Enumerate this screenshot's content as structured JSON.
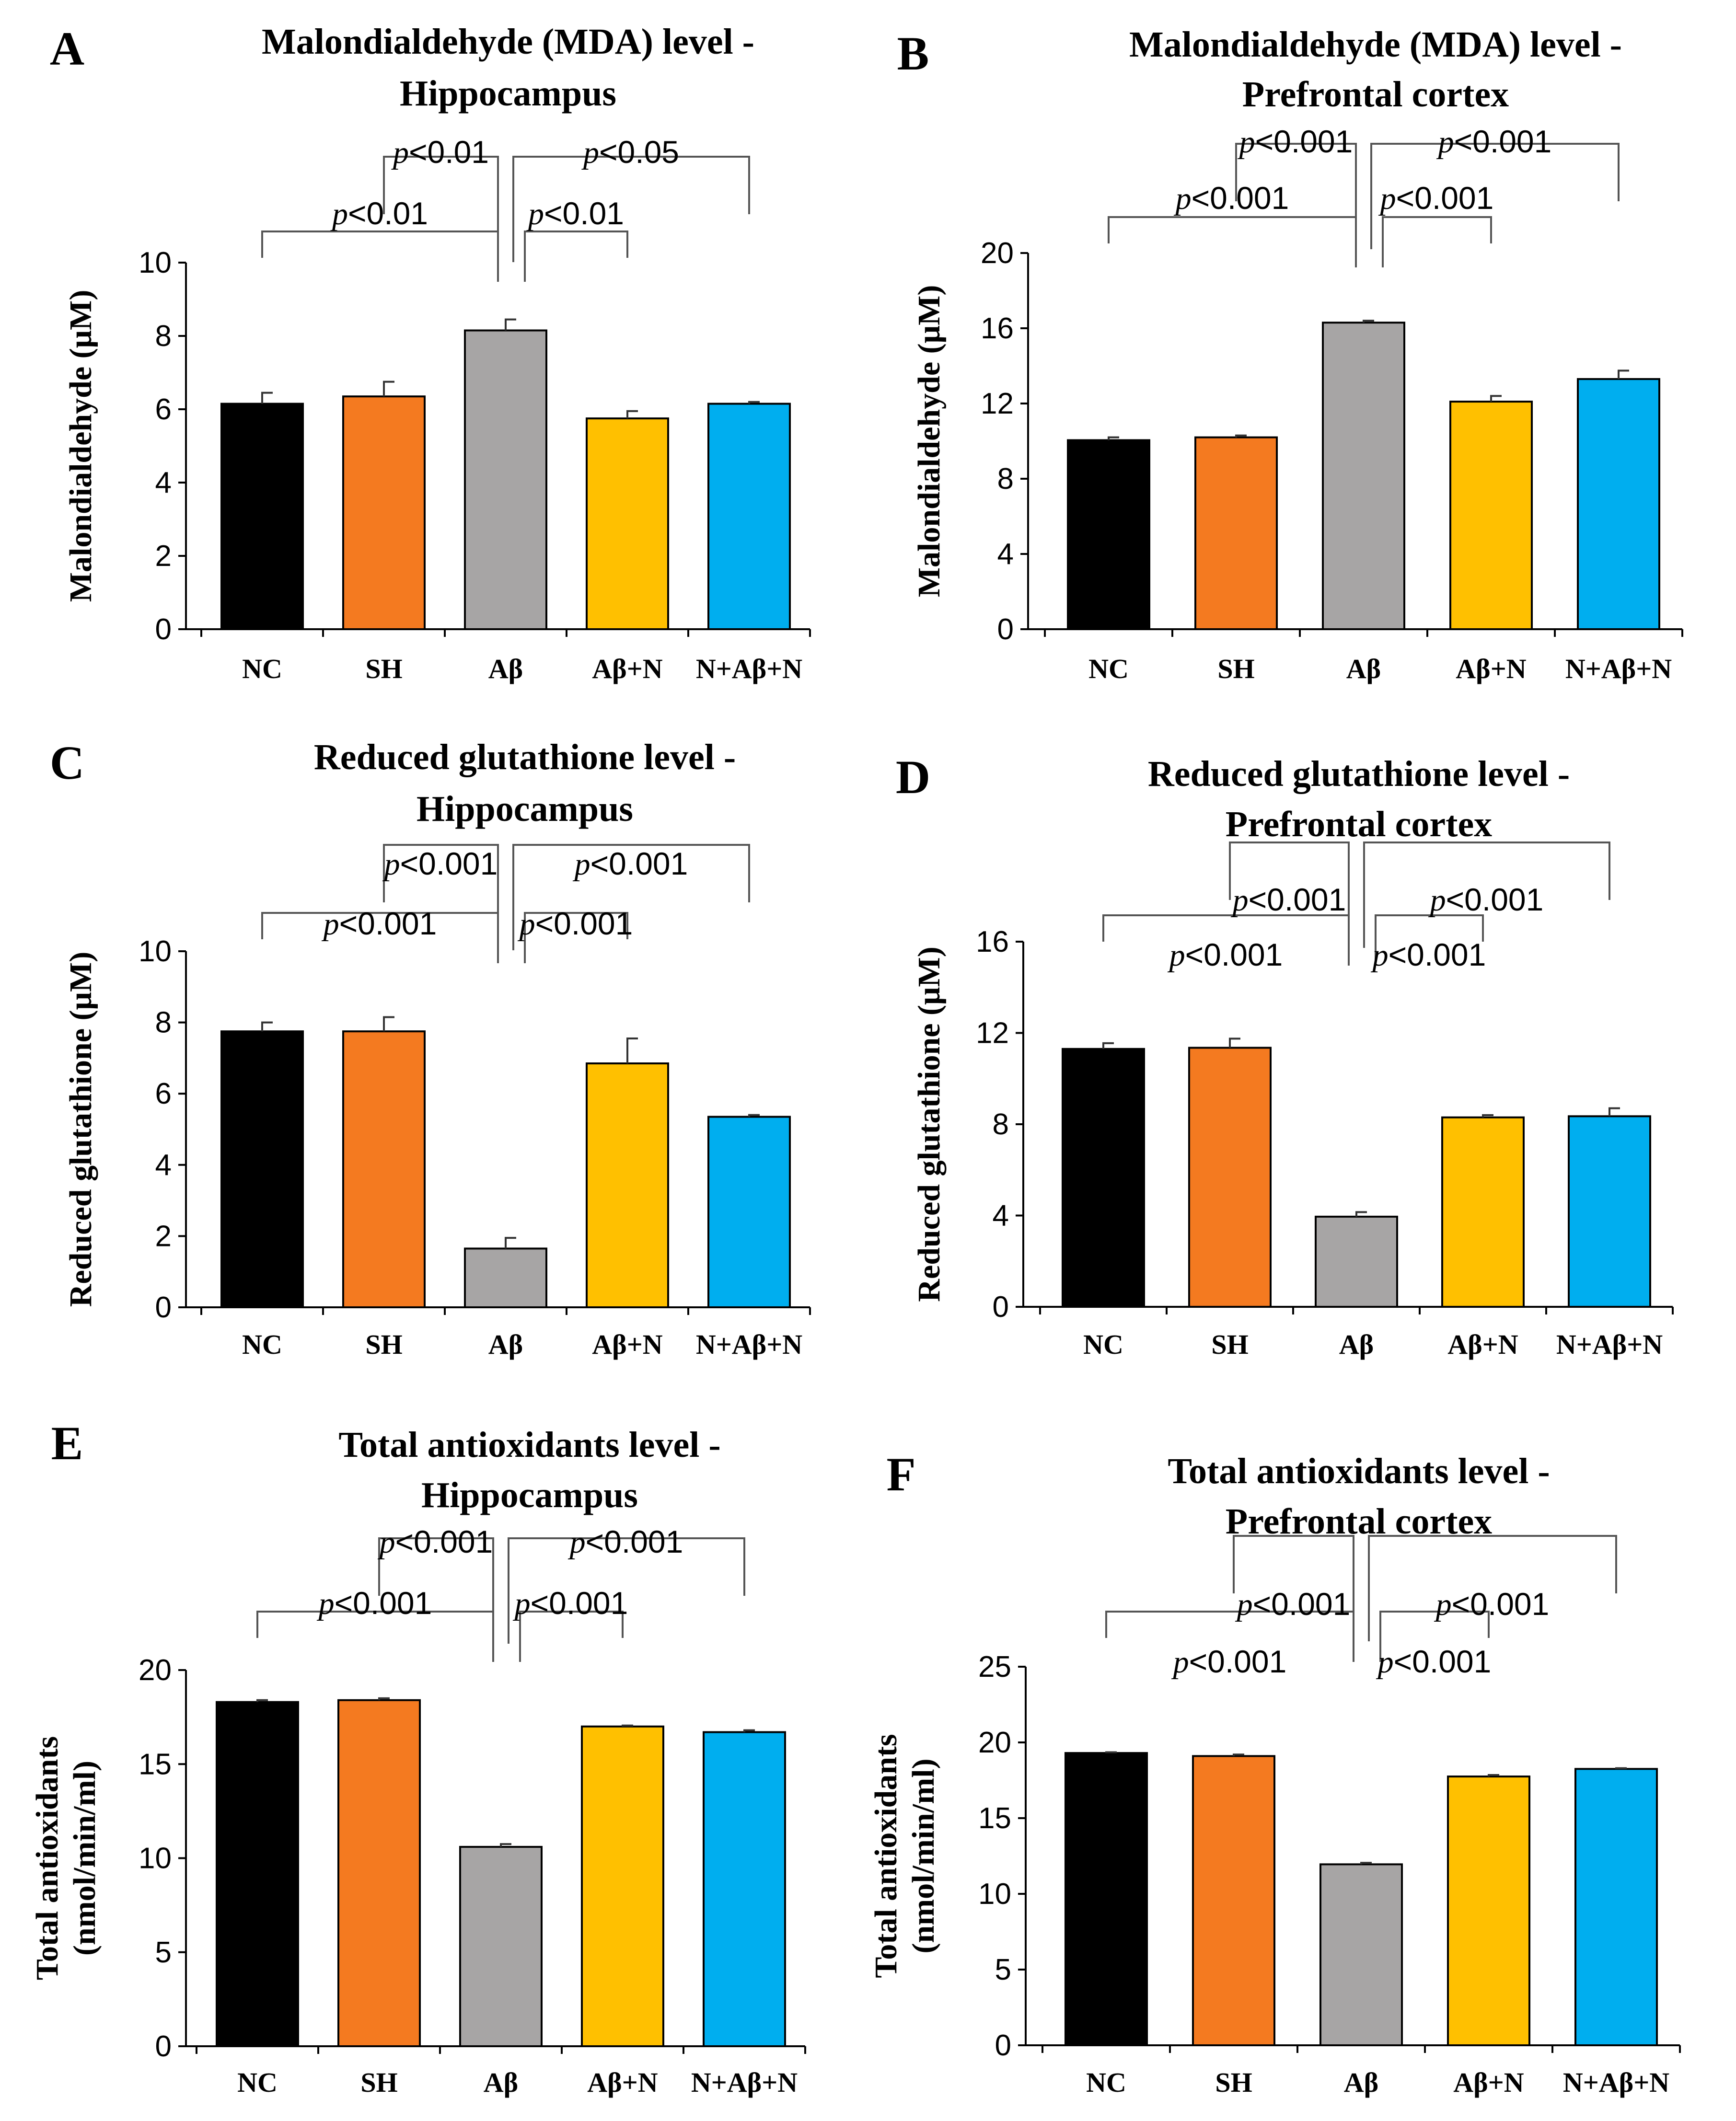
{
  "figure": {
    "categories": [
      "NC",
      "SH",
      "Aβ",
      "Aβ+N",
      "N+Aβ+N"
    ],
    "colors": [
      "#000000",
      "#F47A20",
      "#A7A5A5",
      "#FFC000",
      "#00AEEF"
    ]
  },
  "chart_data": [
    {
      "panel": "A",
      "type": "bar",
      "title": [
        "Malondialdehyde (MDA) level -",
        "Hippocampus"
      ],
      "ylabel": [
        "Malondialdehyde (μM)"
      ],
      "xlabel": "",
      "categories": [
        "NC",
        "SH",
        "Aβ",
        "Aβ+N",
        "N+Aβ+N"
      ],
      "values": [
        6.15,
        6.35,
        8.15,
        5.75,
        6.15
      ],
      "errors": [
        0.3,
        0.4,
        0.3,
        0.2,
        0.05
      ],
      "ylim": [
        0,
        10
      ],
      "yticks": [
        0,
        2,
        4,
        6,
        8,
        10
      ],
      "significance": [
        {
          "from": "NC",
          "to": "Aβ",
          "label": "p<0.01",
          "level": 0
        },
        {
          "from": "Aβ",
          "to": "Aβ+N",
          "label": "p<0.01",
          "level": 0
        },
        {
          "from": "SH",
          "to": "Aβ",
          "label": "p<0.01",
          "level": 1
        },
        {
          "from": "Aβ",
          "to": "N+Aβ+N",
          "label": "p<0.05",
          "level": 1
        }
      ]
    },
    {
      "panel": "B",
      "type": "bar",
      "title": [
        "Malondialdehyde (MDA) level -",
        "Prefrontal cortex"
      ],
      "ylabel": [
        "Malondialdehyde (μM)"
      ],
      "xlabel": "",
      "categories": [
        "NC",
        "SH",
        "Aβ",
        "Aβ+N",
        "N+Aβ+N"
      ],
      "values": [
        10.05,
        10.2,
        16.3,
        12.1,
        13.3
      ],
      "errors": [
        0.15,
        0.1,
        0.1,
        0.3,
        0.45
      ],
      "ylim": [
        0,
        20
      ],
      "yticks": [
        0,
        4,
        8,
        12,
        16,
        20
      ],
      "significance": [
        {
          "from": "NC",
          "to": "Aβ",
          "label": "p<0.001",
          "level": 0
        },
        {
          "from": "Aβ",
          "to": "Aβ+N",
          "label": "p<0.001",
          "level": 0
        },
        {
          "from": "SH",
          "to": "Aβ",
          "label": "p<0.001",
          "level": 1
        },
        {
          "from": "Aβ",
          "to": "N+Aβ+N",
          "label": "p<0.001",
          "level": 1
        }
      ]
    },
    {
      "panel": "C",
      "type": "bar",
      "title": [
        "Reduced glutathione level -",
        "Hippocampus"
      ],
      "ylabel": [
        "Reduced glutathione (μM)"
      ],
      "xlabel": "",
      "categories": [
        "NC",
        "SH",
        "Aβ",
        "Aβ+N",
        "N+Aβ+N"
      ],
      "values": [
        7.75,
        7.75,
        1.65,
        6.85,
        5.35
      ],
      "errors": [
        0.25,
        0.4,
        0.3,
        0.7,
        0.05
      ],
      "ylim": [
        0,
        10
      ],
      "yticks": [
        0,
        2,
        4,
        6,
        8,
        10
      ],
      "significance": [
        {
          "from": "NC",
          "to": "Aβ",
          "label": "p<0.001",
          "level": 0
        },
        {
          "from": "Aβ",
          "to": "Aβ+N",
          "label": "p<0.001",
          "level": 0
        },
        {
          "from": "SH",
          "to": "Aβ",
          "label": "p<0.001",
          "level": 1
        },
        {
          "from": "Aβ",
          "to": "N+Aβ+N",
          "label": "p<0.001",
          "level": 1
        }
      ]
    },
    {
      "panel": "D",
      "type": "bar",
      "title": [
        "Reduced glutathione level -",
        "Prefrontal cortex"
      ],
      "ylabel": [
        "Reduced glutathione (μM)"
      ],
      "xlabel": "",
      "categories": [
        "NC",
        "SH",
        "Aβ",
        "Aβ+N",
        "N+Aβ+N"
      ],
      "values": [
        11.3,
        11.35,
        3.95,
        8.3,
        8.35
      ],
      "errors": [
        0.25,
        0.4,
        0.2,
        0.1,
        0.35
      ],
      "ylim": [
        0,
        16
      ],
      "yticks": [
        0,
        4,
        8,
        12,
        16
      ],
      "significance": [
        {
          "from": "NC",
          "to": "Aβ",
          "label": "p<0.001",
          "level": 0
        },
        {
          "from": "Aβ",
          "to": "Aβ+N",
          "label": "p<0.001",
          "level": 0
        },
        {
          "from": "SH",
          "to": "Aβ",
          "label": "p<0.001",
          "level": 1
        },
        {
          "from": "Aβ",
          "to": "N+Aβ+N",
          "label": "p<0.001",
          "level": 1
        }
      ]
    },
    {
      "panel": "E",
      "type": "bar",
      "title": [
        "Total antioxidants level -",
        "Hippocampus"
      ],
      "ylabel": [
        "Total antioxidants",
        "(nmol/min/ml)"
      ],
      "xlabel": "",
      "categories": [
        "NC",
        "SH",
        "Aβ",
        "Aβ+N",
        "N+Aβ+N"
      ],
      "values": [
        18.3,
        18.4,
        10.6,
        17.0,
        16.7
      ],
      "errors": [
        0.1,
        0.1,
        0.15,
        0.05,
        0.1
      ],
      "ylim": [
        0,
        20
      ],
      "yticks": [
        0,
        5,
        10,
        15,
        20
      ],
      "significance": [
        {
          "from": "NC",
          "to": "Aβ",
          "label": "p<0.001",
          "level": 0
        },
        {
          "from": "Aβ",
          "to": "Aβ+N",
          "label": "p<0.001",
          "level": 0
        },
        {
          "from": "SH",
          "to": "Aβ",
          "label": "p<0.001",
          "level": 1
        },
        {
          "from": "Aβ",
          "to": "N+Aβ+N",
          "label": "p<0.001",
          "level": 1
        }
      ]
    },
    {
      "panel": "F",
      "type": "bar",
      "title": [
        "Total antioxidants level -",
        "Prefrontal cortex"
      ],
      "ylabel": [
        "Total antioxidants",
        "(nmol/min/ml)"
      ],
      "xlabel": "",
      "categories": [
        "NC",
        "SH",
        "Aβ",
        "Aβ+N",
        "N+Aβ+N"
      ],
      "values": [
        19.3,
        19.1,
        11.95,
        17.75,
        18.25
      ],
      "errors": [
        0.05,
        0.1,
        0.1,
        0.1,
        0.05
      ],
      "ylim": [
        0,
        25
      ],
      "yticks": [
        0,
        5,
        10,
        15,
        20,
        25
      ],
      "significance": [
        {
          "from": "NC",
          "to": "Aβ",
          "label": "p<0.001",
          "level": 0
        },
        {
          "from": "Aβ",
          "to": "Aβ+N",
          "label": "p<0.001",
          "level": 0
        },
        {
          "from": "SH",
          "to": "Aβ",
          "label": "p<0.001",
          "level": 1
        },
        {
          "from": "Aβ",
          "to": "N+Aβ+N",
          "label": "p<0.001",
          "level": 1
        }
      ]
    }
  ]
}
